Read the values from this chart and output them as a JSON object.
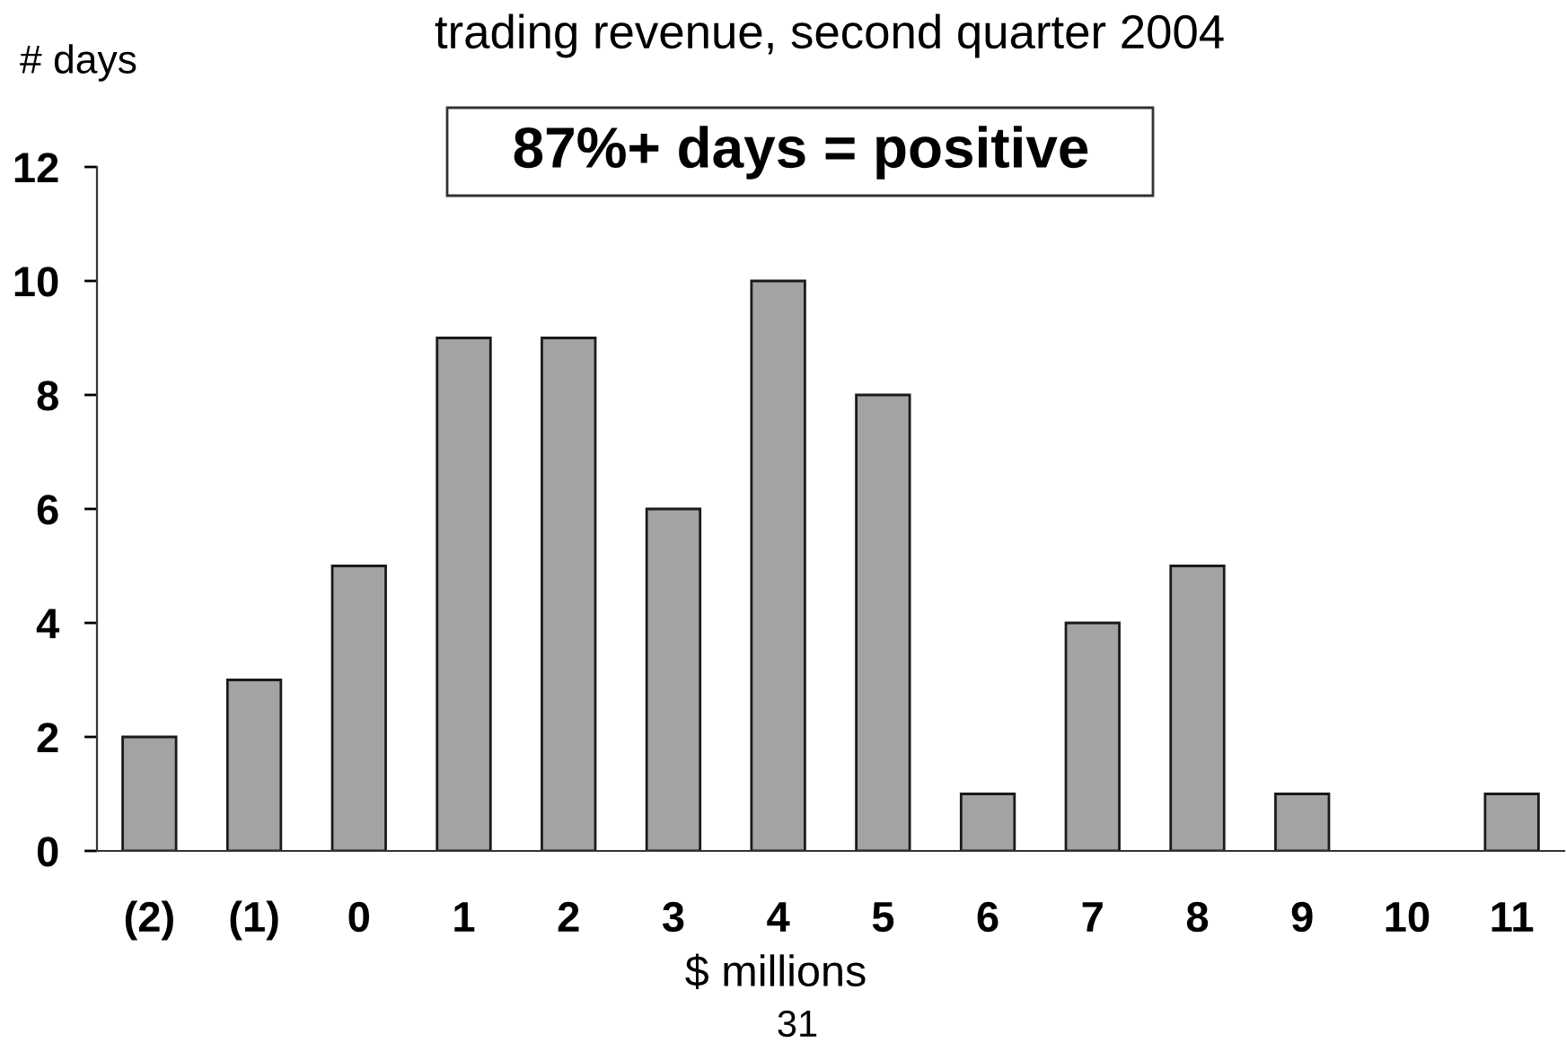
{
  "chart_data": {
    "type": "bar",
    "title": "trading revenue, second quarter 2004",
    "ylabel": "# days",
    "xlabel": "$ millions",
    "categories": [
      "(2)",
      "(1)",
      "0",
      "1",
      "2",
      "3",
      "4",
      "5",
      "6",
      "7",
      "8",
      "9",
      "10",
      "11"
    ],
    "values": [
      2,
      3,
      5,
      9,
      9,
      6,
      10,
      8,
      1,
      4,
      5,
      1,
      0,
      1
    ],
    "color": "#a3a3a3",
    "ylim": [
      0,
      12
    ],
    "yticks": [
      0,
      2,
      4,
      6,
      8,
      10,
      12
    ],
    "grid": false,
    "legend": false,
    "annotations": [
      "87%+ days = positive",
      "31"
    ]
  }
}
